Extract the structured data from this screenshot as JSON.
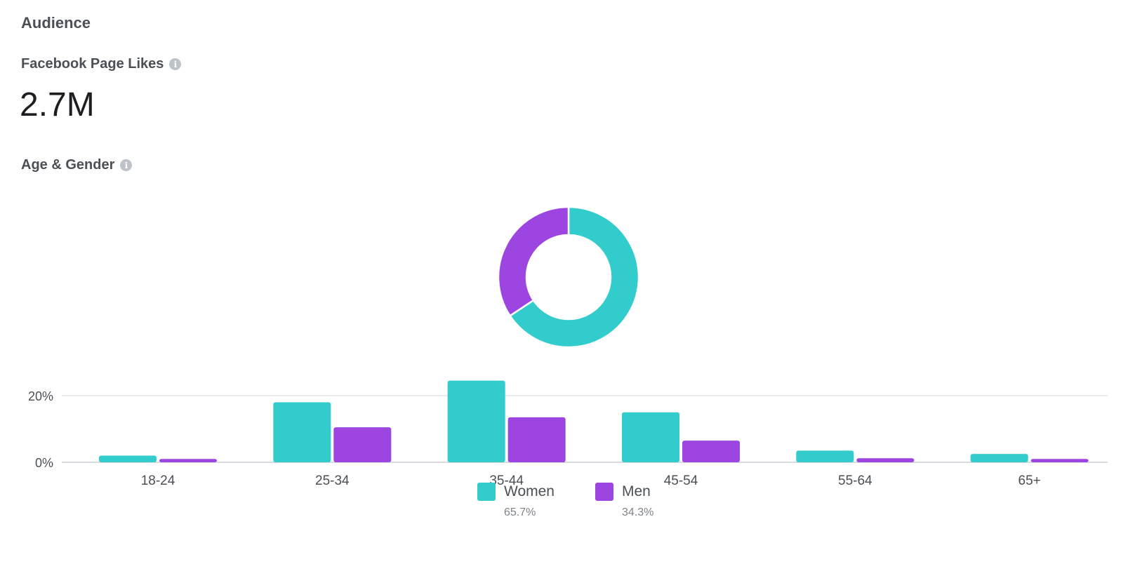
{
  "header": {
    "title": "Audience"
  },
  "likes": {
    "label": "Facebook Page Likes",
    "value": "2.7M",
    "info_icon": "info-icon"
  },
  "age_gender": {
    "label": "Age & Gender",
    "info_icon": "info-icon"
  },
  "colors": {
    "women": "#33cccc",
    "men": "#9c45e0",
    "grid": "#e4e6eb",
    "axis_text": "#4b4f56"
  },
  "legend": [
    {
      "name": "Women",
      "pct": "65.7%"
    },
    {
      "name": "Men",
      "pct": "34.3%"
    }
  ],
  "chart_data": [
    {
      "type": "pie",
      "labels": [
        "Women",
        "Men"
      ],
      "values": [
        65.7,
        34.3
      ],
      "donut": true
    },
    {
      "type": "bar",
      "categories": [
        "18-24",
        "25-34",
        "35-44",
        "45-54",
        "55-64",
        "65+"
      ],
      "series": [
        {
          "name": "Women",
          "values": [
            2,
            18,
            24.5,
            15,
            3.5,
            2.5
          ]
        },
        {
          "name": "Men",
          "values": [
            1,
            10.5,
            13.5,
            6.5,
            1.2,
            1
          ]
        }
      ],
      "yticks": [
        "0%",
        "20%"
      ],
      "ylim": [
        0,
        25
      ],
      "grid": true
    }
  ]
}
